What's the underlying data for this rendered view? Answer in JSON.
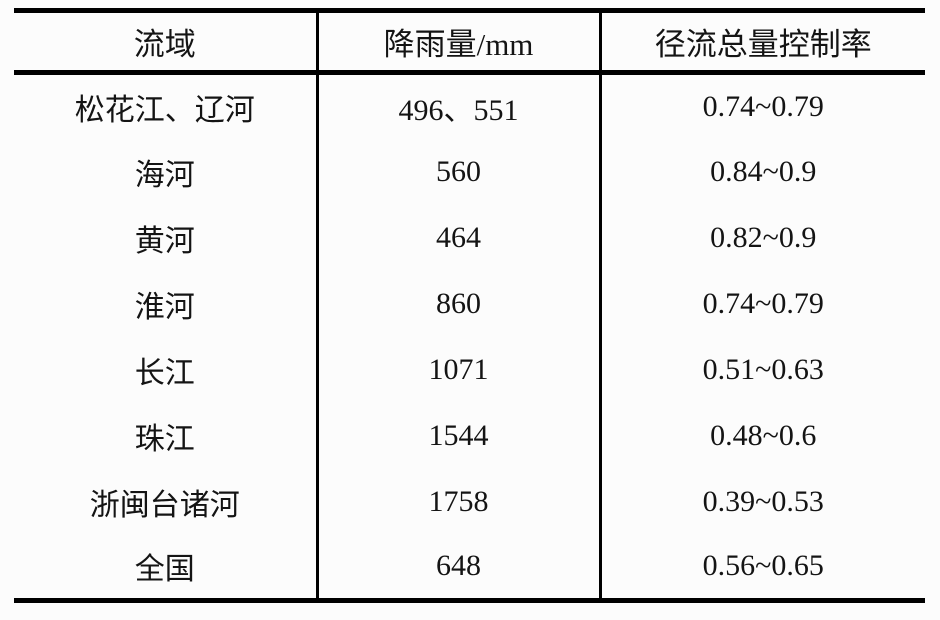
{
  "table": {
    "columns": [
      {
        "key": "basin",
        "label": "流域"
      },
      {
        "key": "rainfall",
        "label": "降雨量/mm"
      },
      {
        "key": "control_rate",
        "label": "径流总量控制率"
      }
    ],
    "rows": [
      {
        "basin": "松花江、辽河",
        "rainfall": "496、551",
        "control_rate": "0.74~0.79"
      },
      {
        "basin": "海河",
        "rainfall": "560",
        "control_rate": "0.84~0.9"
      },
      {
        "basin": "黄河",
        "rainfall": "464",
        "control_rate": "0.82~0.9"
      },
      {
        "basin": "淮河",
        "rainfall": "860",
        "control_rate": "0.74~0.79"
      },
      {
        "basin": "长江",
        "rainfall": "1071",
        "control_rate": "0.51~0.63"
      },
      {
        "basin": "珠江",
        "rainfall": "1544",
        "control_rate": "0.48~0.6"
      },
      {
        "basin": "浙闽台诸河",
        "rainfall": "1758",
        "control_rate": "0.39~0.53"
      },
      {
        "basin": "全国",
        "rainfall": "648",
        "control_rate": "0.56~0.65"
      }
    ]
  },
  "colors": {
    "border": "#000000",
    "background": "#fcfcfc",
    "text": "#141414"
  },
  "chart_data": {
    "type": "table",
    "columns": [
      "流域",
      "降雨量/mm",
      "径流总量控制率"
    ],
    "rows": [
      [
        "松花江、辽河",
        "496、551",
        "0.74~0.79"
      ],
      [
        "海河",
        "560",
        "0.84~0.9"
      ],
      [
        "黄河",
        "464",
        "0.82~0.9"
      ],
      [
        "淮河",
        "860",
        "0.74~0.79"
      ],
      [
        "长江",
        "1071",
        "0.51~0.63"
      ],
      [
        "珠江",
        "1544",
        "0.48~0.6"
      ],
      [
        "浙闽台诸河",
        "1758",
        "0.39~0.53"
      ],
      [
        "全国",
        "648",
        "0.56~0.65"
      ]
    ]
  }
}
